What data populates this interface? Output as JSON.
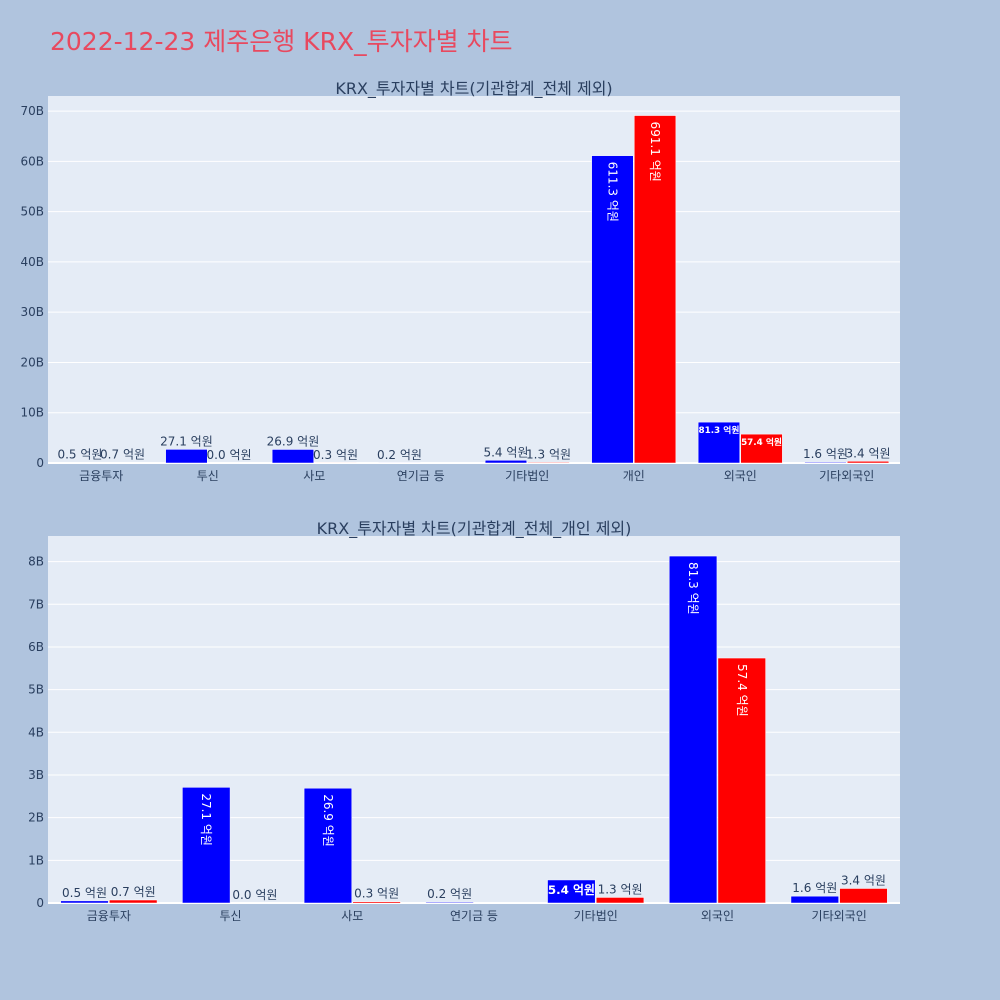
{
  "page": {
    "title": "2022-12-23 제주은행 KRX_투자자별 차트"
  },
  "colors": {
    "series_a": "#0000ff",
    "series_b": "#ff0000",
    "plot_bg": "#e5ecf6",
    "page_bg": "#b0c4de",
    "title": "#e8495f"
  },
  "chart_data": [
    {
      "type": "bar",
      "title": "KRX_투자자별 차트(기관합계_전체 제외)",
      "categories": [
        "금융투자",
        "투신",
        "사모",
        "연기금 등",
        "기타법인",
        "개인",
        "외국인",
        "기타외국인"
      ],
      "series": [
        {
          "values": [
            0.05,
            2.71,
            2.69,
            0.02,
            0.54,
            61.13,
            8.13,
            0.16
          ],
          "labels": [
            "0.5 억원",
            "27.1 억원",
            "26.9 억원",
            "0.2 억원",
            "5.4 억원",
            "611.3 억원",
            "81.3 억원",
            "1.6 억원"
          ]
        },
        {
          "values": [
            0.07,
            0.0,
            0.03,
            0,
            0.13,
            69.11,
            5.74,
            0.34
          ],
          "labels": [
            "0.7 억원",
            "0.0 억원",
            "0.3 억원",
            "",
            "1.3 억원",
            "691.1 억원",
            "57.4 억원",
            "3.4 억원"
          ]
        }
      ],
      "ylim": [
        0,
        73
      ],
      "yticks": [
        0,
        10,
        20,
        30,
        40,
        50,
        60,
        70
      ],
      "ytick_labels": [
        "0",
        "10B",
        "20B",
        "30B",
        "40B",
        "50B",
        "60B",
        "70B"
      ],
      "grid": true
    },
    {
      "type": "bar",
      "title": "KRX_투자자별 차트(기관합계_전체_개인 제외)",
      "categories": [
        "금융투자",
        "투신",
        "사모",
        "연기금 등",
        "기타법인",
        "외국인",
        "기타외국인"
      ],
      "series": [
        {
          "values": [
            0.05,
            2.71,
            2.69,
            0.02,
            0.54,
            8.13,
            0.16
          ],
          "labels": [
            "0.5 억원",
            "27.1 억원",
            "26.9 억원",
            "0.2 억원",
            "5.4 억원",
            "81.3 억원",
            "1.6 억원"
          ]
        },
        {
          "values": [
            0.07,
            0.0,
            0.03,
            0,
            0.13,
            5.74,
            0.34
          ],
          "labels": [
            "0.7 억원",
            "0.0 억원",
            "0.3 억원",
            "",
            "1.3 억원",
            "57.4 억원",
            "3.4 억원"
          ]
        }
      ],
      "ylim": [
        0,
        8.6
      ],
      "yticks": [
        0,
        1,
        2,
        3,
        4,
        5,
        6,
        7,
        8
      ],
      "ytick_labels": [
        "0",
        "1B",
        "2B",
        "3B",
        "4B",
        "5B",
        "6B",
        "7B",
        "8B"
      ],
      "grid": true
    }
  ]
}
